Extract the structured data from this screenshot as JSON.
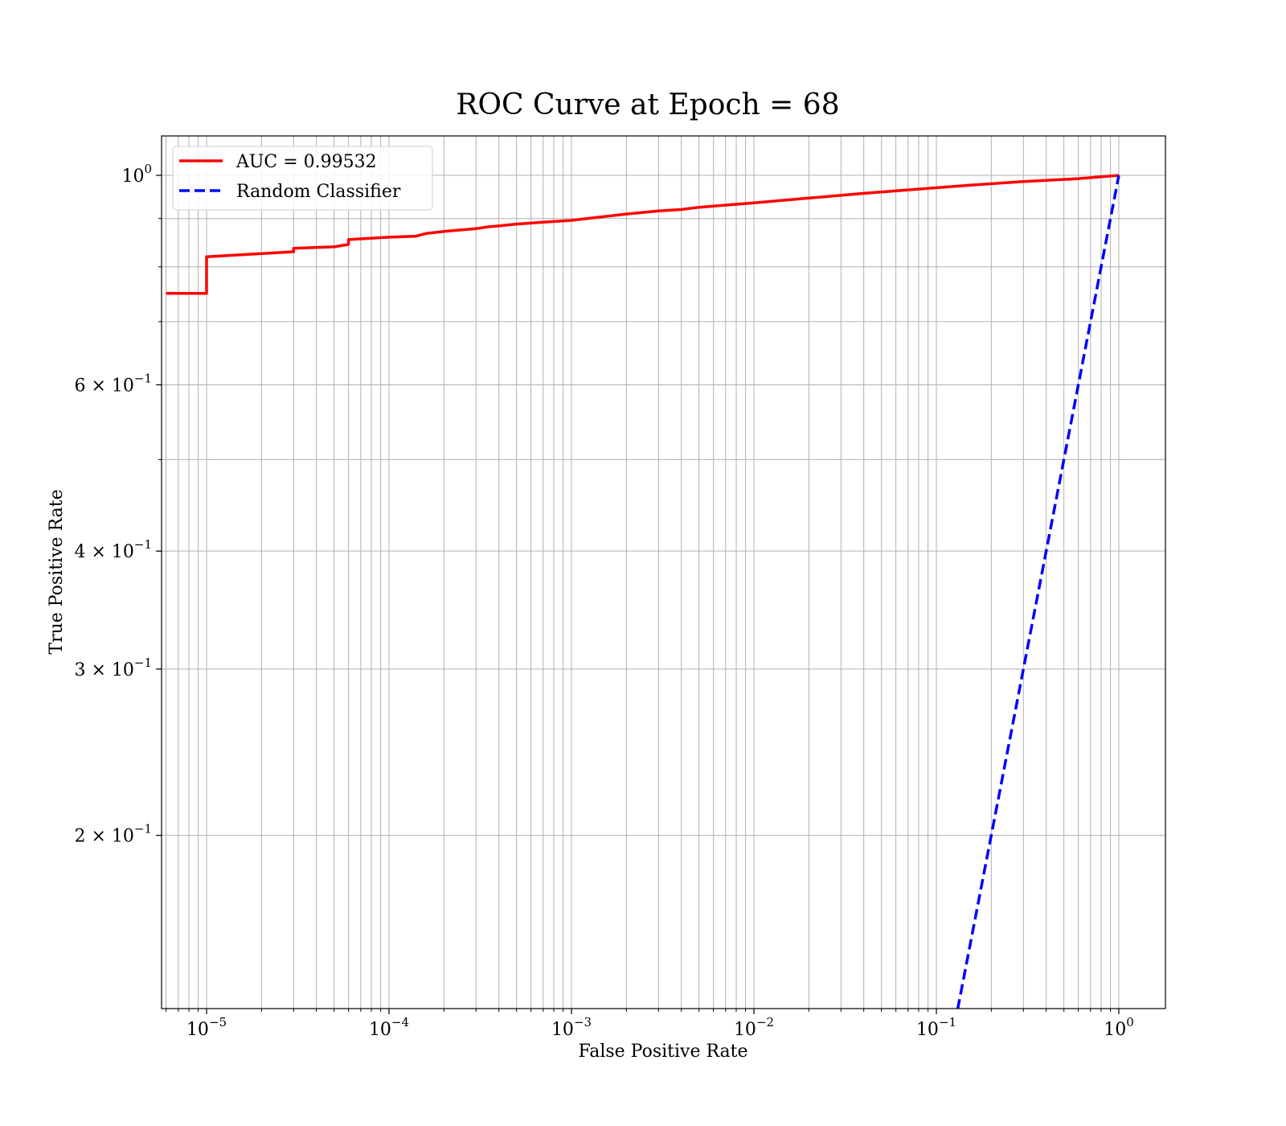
{
  "chart_data": {
    "type": "line",
    "title": "ROC Curve at Epoch = 68",
    "xlabel": "False Positive Rate",
    "ylabel": "True Positive Rate",
    "xscale": "log",
    "yscale": "log",
    "xlim": [
      6e-06,
      1.8
    ],
    "ylim": [
      0.12,
      1.1
    ],
    "grid": "both (major and minor)",
    "legend_position": "top-left",
    "x_ticks": [
      {
        "value": 1e-05,
        "base": "10",
        "exp": "−5"
      },
      {
        "value": 0.0001,
        "base": "10",
        "exp": "−4"
      },
      {
        "value": 0.001,
        "base": "10",
        "exp": "−3"
      },
      {
        "value": 0.01,
        "base": "10",
        "exp": "−2"
      },
      {
        "value": 0.1,
        "base": "10",
        "exp": "−1"
      },
      {
        "value": 1,
        "base": "10",
        "exp": "0"
      }
    ],
    "y_ticks": [
      {
        "value": 1.0,
        "base": "10",
        "exp": "0"
      },
      {
        "value": 0.6,
        "base": "6 × 10",
        "exp": "−1"
      },
      {
        "value": 0.4,
        "base": "4 × 10",
        "exp": "−1"
      },
      {
        "value": 0.3,
        "base": "3 × 10",
        "exp": "−1"
      },
      {
        "value": 0.2,
        "base": "2 × 10",
        "exp": "−1"
      }
    ],
    "series": [
      {
        "name": "AUC = 0.99532",
        "color": "#ff0000",
        "style": "solid",
        "x": [
          6e-06,
          1e-05,
          1e-05,
          3e-05,
          3e-05,
          5e-05,
          6e-05,
          6e-05,
          0.0001,
          0.00014,
          0.00016,
          0.0002,
          0.0003,
          0.00035,
          0.0004,
          0.0005,
          0.0006,
          0.0007,
          0.001,
          0.0011,
          0.002,
          0.003,
          0.004,
          0.005,
          0.01,
          0.02,
          0.04,
          0.08,
          0.15,
          0.3,
          0.6,
          1.0
        ],
        "y": [
          0.75,
          0.75,
          0.82,
          0.83,
          0.837,
          0.84,
          0.845,
          0.855,
          0.86,
          0.862,
          0.868,
          0.872,
          0.878,
          0.882,
          0.884,
          0.888,
          0.89,
          0.892,
          0.896,
          0.898,
          0.91,
          0.917,
          0.92,
          0.925,
          0.935,
          0.946,
          0.957,
          0.967,
          0.976,
          0.985,
          0.992,
          1.0
        ]
      },
      {
        "name": "Random Classifier",
        "color": "#0000ff",
        "style": "dashed",
        "x": [
          0.113,
          1.0
        ],
        "y": [
          0.113,
          1.0
        ]
      }
    ]
  }
}
